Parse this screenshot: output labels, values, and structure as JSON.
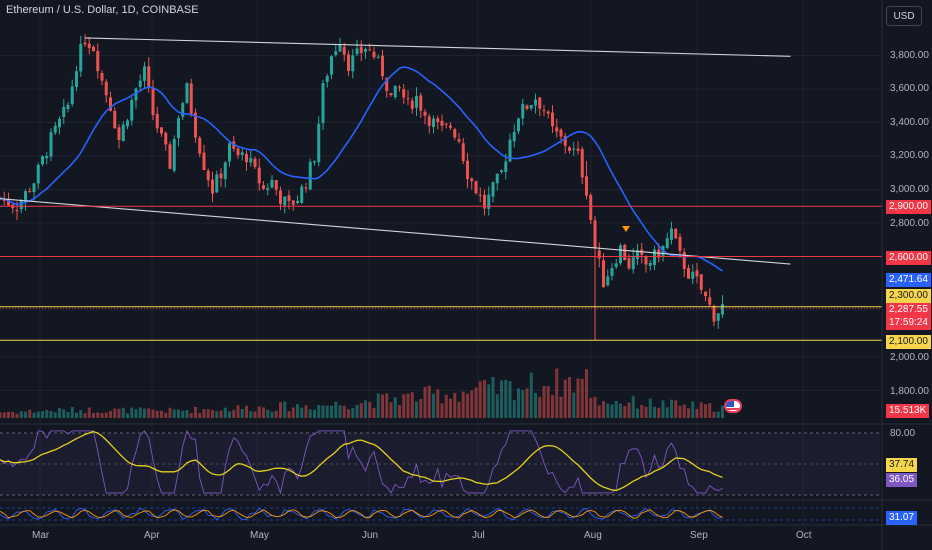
{
  "header": {
    "title": "Ethereum / U.S. Dollar, 1D, COINBASE",
    "currency_button": "USD"
  },
  "colors": {
    "background": "#131722",
    "up": "#26a69a",
    "down": "#ef5350",
    "ma": "#2962ff",
    "resistance": "#f23645",
    "support": "#f7d54a",
    "rsi": "#7e57c2",
    "rsi_ma": "#e4d21a",
    "osc_fast": "#2962ff",
    "osc_slow": "#ff9800"
  },
  "price_axis": {
    "ticks": [
      "3,800.00",
      "3,600.00",
      "3,400.00",
      "3,200.00",
      "3,000.00",
      "2,800.00",
      "2,000.00",
      "1,800.00"
    ],
    "tick_values": [
      3800,
      3600,
      3400,
      3200,
      3000,
      2800,
      2000,
      1800
    ]
  },
  "price_tags": {
    "level_2900": "2,900.00",
    "level_2600": "2,600.00",
    "ma_value": "2,471.64",
    "level_2300": "2,300.00",
    "last_price": "2,287.55",
    "countdown": "17:59:24",
    "level_2100": "2,100.00",
    "volume": "15.513K",
    "rsi_level": "80.00",
    "rsi_ma": "37.74",
    "rsi_value": "36.05",
    "osc_value": "31.07"
  },
  "time_axis": [
    "Mar",
    "Apr",
    "May",
    "Jun",
    "Jul",
    "Aug",
    "Sep",
    "Oct"
  ],
  "chart_data": {
    "type": "candlestick",
    "symbol": "ETHUSD",
    "interval": "1D",
    "ylim": [
      1800,
      3900
    ],
    "horizontal_levels": [
      {
        "price": 2900,
        "role": "resistance"
      },
      {
        "price": 2600,
        "role": "resistance"
      },
      {
        "price": 2300,
        "role": "support"
      },
      {
        "price": 2100,
        "role": "support"
      }
    ],
    "last_price": 2287.55,
    "ma_last": 2471.64,
    "volume_last_k": 15.513,
    "rsi": {
      "last": 36.05,
      "ma_last": 37.74,
      "upper_band": 80
    },
    "oscillator_last": 31.07,
    "price_path": [
      [
        0,
        2950
      ],
      [
        4,
        2900
      ],
      [
        8,
        3050
      ],
      [
        12,
        3300
      ],
      [
        16,
        3500
      ],
      [
        18,
        3750
      ],
      [
        20,
        3900
      ],
      [
        22,
        3850
      ],
      [
        24,
        3650
      ],
      [
        26,
        3500
      ],
      [
        28,
        3300
      ],
      [
        30,
        3450
      ],
      [
        32,
        3600
      ],
      [
        34,
        3700
      ],
      [
        36,
        3450
      ],
      [
        38,
        3300
      ],
      [
        40,
        3150
      ],
      [
        42,
        3450
      ],
      [
        44,
        3600
      ],
      [
        46,
        3350
      ],
      [
        48,
        3150
      ],
      [
        50,
        3000
      ],
      [
        52,
        3100
      ],
      [
        54,
        3250
      ],
      [
        56,
        3200
      ],
      [
        58,
        3200
      ],
      [
        60,
        3100
      ],
      [
        62,
        3000
      ],
      [
        64,
        3050
      ],
      [
        66,
        2950
      ],
      [
        68,
        2900
      ],
      [
        70,
        2950
      ],
      [
        72,
        3050
      ],
      [
        74,
        3200
      ],
      [
        76,
        3600
      ],
      [
        78,
        3800
      ],
      [
        80,
        3900
      ],
      [
        82,
        3750
      ],
      [
        84,
        3800
      ],
      [
        86,
        3850
      ],
      [
        88,
        3800
      ],
      [
        90,
        3700
      ],
      [
        92,
        3550
      ],
      [
        94,
        3600
      ],
      [
        96,
        3500
      ],
      [
        98,
        3550
      ],
      [
        100,
        3450
      ],
      [
        102,
        3400
      ],
      [
        104,
        3350
      ],
      [
        106,
        3380
      ],
      [
        108,
        3300
      ],
      [
        110,
        3100
      ],
      [
        112,
        3000
      ],
      [
        114,
        2900
      ],
      [
        116,
        3000
      ],
      [
        118,
        3100
      ],
      [
        120,
        3300
      ],
      [
        122,
        3450
      ],
      [
        124,
        3500
      ],
      [
        126,
        3550
      ],
      [
        128,
        3480
      ],
      [
        130,
        3350
      ],
      [
        132,
        3300
      ],
      [
        134,
        3250
      ],
      [
        136,
        3200
      ],
      [
        138,
        3000
      ],
      [
        140,
        2650
      ],
      [
        142,
        2450
      ],
      [
        144,
        2550
      ],
      [
        146,
        2650
      ],
      [
        148,
        2550
      ],
      [
        150,
        2600
      ],
      [
        152,
        2550
      ],
      [
        154,
        2600
      ],
      [
        156,
        2650
      ],
      [
        158,
        2750
      ],
      [
        160,
        2600
      ],
      [
        162,
        2500
      ],
      [
        164,
        2450
      ],
      [
        166,
        2350
      ],
      [
        168,
        2250
      ],
      [
        170,
        2300
      ]
    ],
    "volume_path": [
      [
        0,
        0.4
      ],
      [
        18,
        0.55
      ],
      [
        40,
        0.5
      ],
      [
        78,
        0.9
      ],
      [
        138,
        2.6
      ],
      [
        140,
        1.2
      ],
      [
        170,
        0.7
      ]
    ],
    "trend_lines": [
      {
        "from": [
          20,
          3905
        ],
        "to": [
          186,
          3795
        ],
        "label": "upper channel"
      },
      {
        "from": [
          0,
          2945
        ],
        "to": [
          186,
          2555
        ],
        "label": "lower channel"
      }
    ]
  }
}
